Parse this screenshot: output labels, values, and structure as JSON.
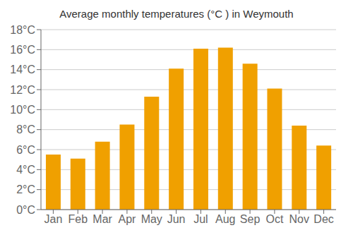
{
  "chart_data": {
    "type": "bar",
    "title": "Average monthly temperatures (°C ) in Weymouth",
    "categories": [
      "Jan",
      "Feb",
      "Mar",
      "Apr",
      "May",
      "Jun",
      "Jul",
      "Aug",
      "Sep",
      "Oct",
      "Nov",
      "Dec"
    ],
    "values": [
      5.5,
      5.1,
      6.8,
      8.5,
      11.3,
      14.1,
      16.1,
      16.2,
      14.6,
      12.1,
      8.4,
      6.4
    ],
    "color": "#F0A000",
    "ylim": [
      0,
      18
    ],
    "yticks": [
      {
        "value": 0,
        "label": "0°C"
      },
      {
        "value": 2,
        "label": "2°C"
      },
      {
        "value": 4,
        "label": "4°C"
      },
      {
        "value": 6,
        "label": "6°C"
      },
      {
        "value": 8,
        "label": "8°C"
      },
      {
        "value": 10,
        "label": "10°C"
      },
      {
        "value": 12,
        "label": "12°C"
      },
      {
        "value": 14,
        "label": "14°C"
      },
      {
        "value": 16,
        "label": "16°C"
      },
      {
        "value": 18,
        "label": "18°C"
      }
    ],
    "grid": true
  }
}
